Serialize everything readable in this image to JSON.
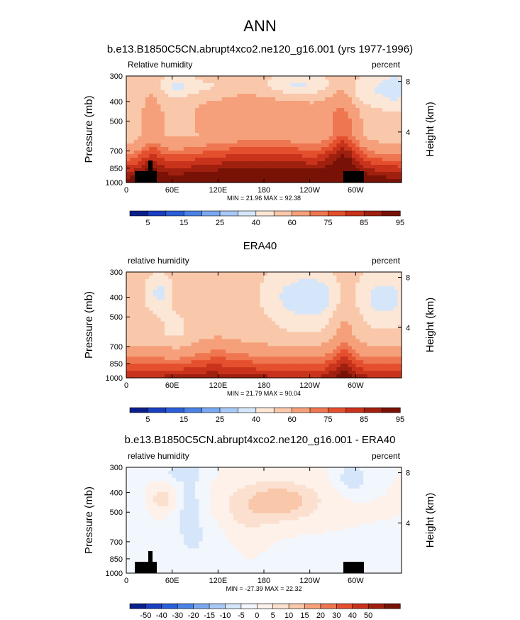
{
  "figure": {
    "title": "ANN",
    "colors": {
      "seq": [
        "#0a1f8c",
        "#1a3fbf",
        "#2b5fd9",
        "#4a82e6",
        "#7aa8f0",
        "#a9c9f5",
        "#d6e6fa",
        "#fce6d6",
        "#f9c7aa",
        "#f5a07a",
        "#ee7650",
        "#e4502e",
        "#c9331c",
        "#a0200f",
        "#781207"
      ],
      "div": [
        "#0a1f8c",
        "#1a3fbf",
        "#2b5fd9",
        "#4a82e6",
        "#7aa8f0",
        "#a9c9f5",
        "#d6e6fa",
        "#f2f6fd",
        "#fdf1ea",
        "#fce0cf",
        "#f9c7aa",
        "#f5a07a",
        "#ee7650",
        "#e4502e",
        "#c9331c",
        "#a0200f",
        "#781207"
      ]
    }
  },
  "chart_data": [
    {
      "type": "heatmap",
      "title": "b.e13.B1850C5CN.abrupt4xco2.ne120_g16.001 (yrs 1977-1996)",
      "left_label": "Relative humidity",
      "right_label": "percent",
      "ylabel": "Pressure (mb)",
      "y2label": "Height (km)",
      "xticks": [
        "0",
        "60E",
        "120E",
        "180",
        "120W",
        "60W"
      ],
      "xtick_lon": [
        0,
        60,
        120,
        180,
        240,
        300
      ],
      "xlim": [
        0,
        360
      ],
      "yticks": [
        "300",
        "400",
        "500",
        "700",
        "850",
        "1000"
      ],
      "ytick_p": [
        300,
        400,
        500,
        700,
        850,
        1000
      ],
      "ylim": [
        1000,
        300
      ],
      "y2ticks": [
        "8",
        "4"
      ],
      "y2tick_km": [
        8,
        4
      ],
      "minmax": "MIN =  21.96  MAX =  92.38",
      "colorbar_labels": [
        "5",
        "15",
        "25",
        "40",
        "60",
        "75",
        "85",
        "95"
      ],
      "palette": "seq",
      "field": "model",
      "terrain": true
    },
    {
      "type": "heatmap",
      "title": "ERA40",
      "left_label": "relative humidity",
      "right_label": "percent",
      "ylabel": "Pressure (mb)",
      "y2label": "Height (km)",
      "xticks": [
        "0",
        "60E",
        "120E",
        "180",
        "120W",
        "60W"
      ],
      "xtick_lon": [
        0,
        60,
        120,
        180,
        240,
        300
      ],
      "xlim": [
        0,
        360
      ],
      "yticks": [
        "300",
        "400",
        "500",
        "700",
        "850",
        "1000"
      ],
      "ytick_p": [
        300,
        400,
        500,
        700,
        850,
        1000
      ],
      "ylim": [
        1000,
        300
      ],
      "y2ticks": [
        "8",
        "4"
      ],
      "y2tick_km": [
        8,
        4
      ],
      "minmax": "MIN =  21.79  MAX =  90.04",
      "colorbar_labels": [
        "5",
        "15",
        "25",
        "40",
        "60",
        "75",
        "85",
        "95"
      ],
      "palette": "seq",
      "field": "obs",
      "terrain": false
    },
    {
      "type": "heatmap",
      "title": "b.e13.B1850C5CN.abrupt4xco2.ne120_g16.001 - ERA40",
      "left_label": "relative humidity",
      "right_label": "percent",
      "ylabel": "Pressure (mb)",
      "y2label": "Height (km)",
      "xticks": [
        "0",
        "60E",
        "120E",
        "180",
        "120W",
        "60W"
      ],
      "xtick_lon": [
        0,
        60,
        120,
        180,
        240,
        300
      ],
      "xlim": [
        0,
        360
      ],
      "yticks": [
        "300",
        "400",
        "500",
        "700",
        "850",
        "1000"
      ],
      "ytick_p": [
        300,
        400,
        500,
        700,
        850,
        1000
      ],
      "ylim": [
        1000,
        300
      ],
      "y2ticks": [
        "8",
        "4"
      ],
      "y2tick_km": [
        8,
        4
      ],
      "minmax": "MIN = -27.39  MAX =  22.32",
      "colorbar_labels": [
        "-50",
        "-40",
        "-30",
        "-20",
        "-15",
        "-10",
        "-5",
        "0",
        "5",
        "10",
        "15",
        "20",
        "30",
        "40",
        "50"
      ],
      "palette": "div",
      "field": "diff",
      "terrain": true
    }
  ]
}
